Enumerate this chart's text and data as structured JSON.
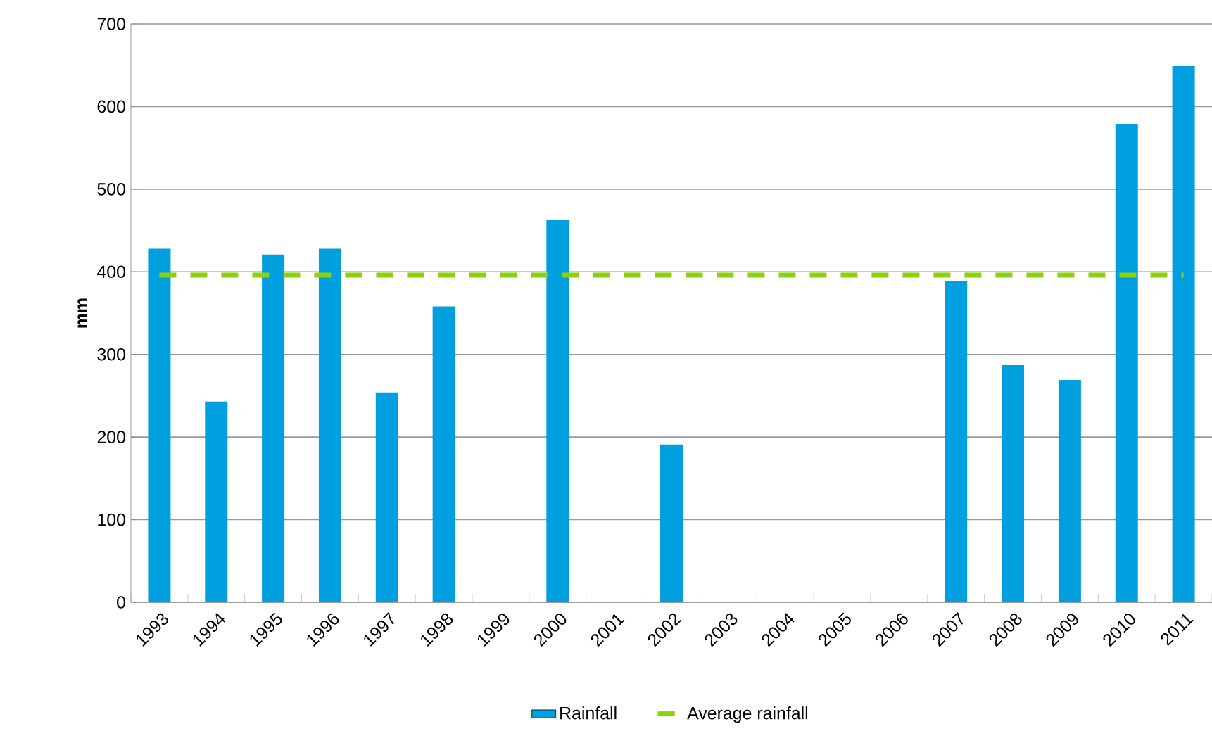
{
  "chart_data": {
    "type": "bar",
    "ylabel": "mm",
    "categories": [
      "1993",
      "1994",
      "1995",
      "1996",
      "1997",
      "1998",
      "1999",
      "2000",
      "2001",
      "2002",
      "2003",
      "2004",
      "2005",
      "2006",
      "2007",
      "2008",
      "2009",
      "2010",
      "2011"
    ],
    "series": [
      {
        "name": "Rainfall",
        "color": "#009fdf",
        "values": [
          428,
          243,
          421,
          428,
          254,
          358,
          null,
          463,
          null,
          191,
          null,
          null,
          null,
          null,
          389,
          287,
          269,
          579,
          649
        ]
      },
      {
        "name": "Average rainfall",
        "type": "line",
        "line_style": "dashed",
        "color": "#8cd10c",
        "values": [
          396,
          396,
          396,
          396,
          396,
          396,
          396,
          396,
          396,
          396,
          396,
          396,
          396,
          396,
          396,
          396,
          396,
          396,
          396
        ]
      }
    ],
    "ylim": [
      0,
      700
    ],
    "yticks": [
      0,
      100,
      200,
      300,
      400,
      500,
      600,
      700
    ],
    "grid": "y",
    "legend": "bottom"
  }
}
